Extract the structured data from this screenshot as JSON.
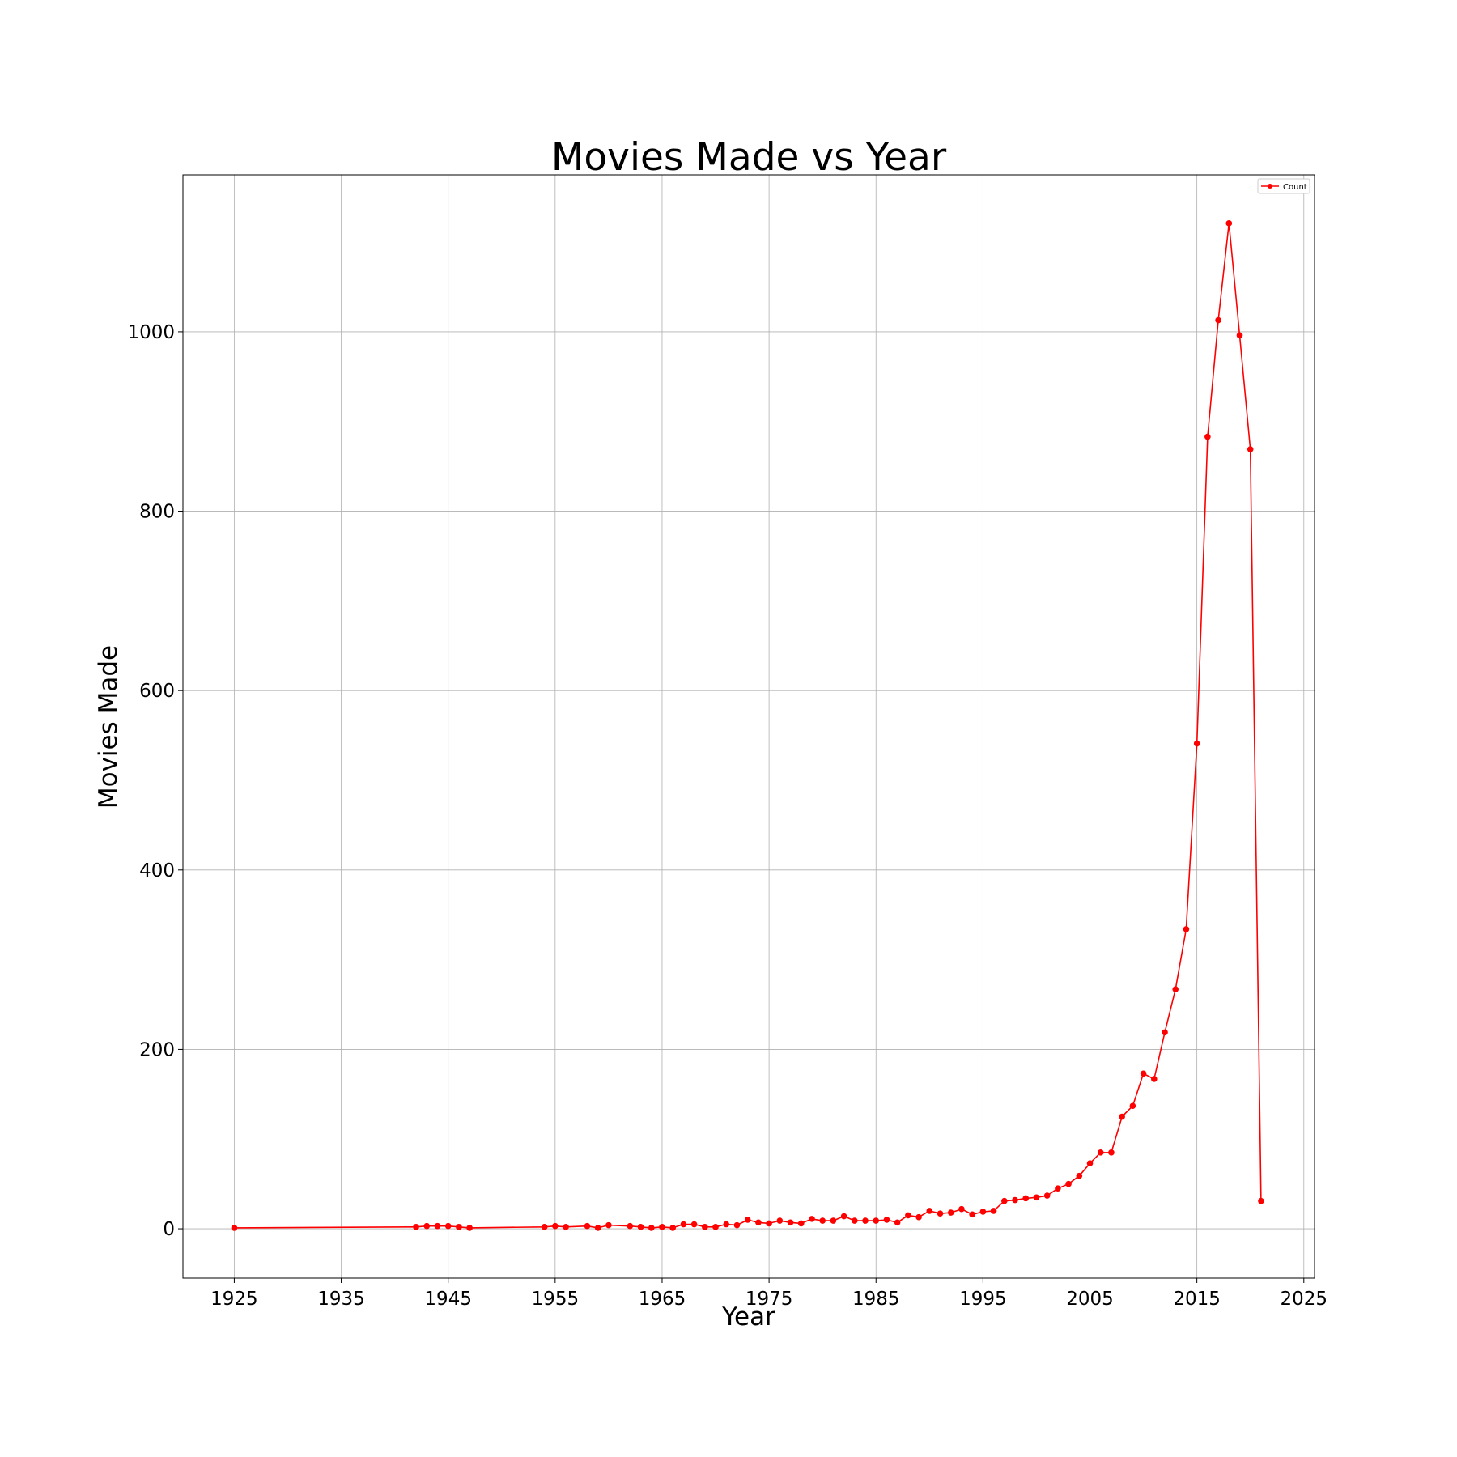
{
  "chart_data": {
    "type": "line",
    "title": "Movies Made vs Year",
    "xlabel": "Year",
    "ylabel": "Movies Made",
    "xlim": [
      1920.2,
      2026.0
    ],
    "ylim": [
      -55,
      1175
    ],
    "xticks": [
      1925,
      1935,
      1945,
      1955,
      1965,
      1975,
      1985,
      1995,
      2005,
      2015,
      2025
    ],
    "yticks": [
      0,
      200,
      400,
      600,
      800,
      1000
    ],
    "grid": true,
    "legend_position": "top-right",
    "series": [
      {
        "name": "Count",
        "color": "#ff0000",
        "marker": "circle",
        "x": [
          1925,
          1942,
          1943,
          1944,
          1945,
          1946,
          1947,
          1954,
          1955,
          1956,
          1958,
          1959,
          1960,
          1962,
          1963,
          1964,
          1965,
          1966,
          1967,
          1968,
          1969,
          1970,
          1971,
          1972,
          1973,
          1974,
          1975,
          1976,
          1977,
          1978,
          1979,
          1980,
          1981,
          1982,
          1983,
          1984,
          1985,
          1986,
          1987,
          1988,
          1989,
          1990,
          1991,
          1992,
          1993,
          1994,
          1995,
          1996,
          1997,
          1998,
          1999,
          2000,
          2001,
          2002,
          2003,
          2004,
          2005,
          2006,
          2007,
          2008,
          2009,
          2010,
          2011,
          2012,
          2013,
          2014,
          2015,
          2016,
          2017,
          2018,
          2019,
          2020,
          2021
        ],
        "y": [
          1,
          2,
          3,
          3,
          3,
          2,
          1,
          2,
          3,
          2,
          3,
          1,
          4,
          3,
          2,
          1,
          2,
          1,
          5,
          5,
          2,
          2,
          5,
          4,
          10,
          7,
          6,
          9,
          7,
          6,
          11,
          9,
          9,
          14,
          9,
          9,
          9,
          10,
          7,
          15,
          13,
          20,
          17,
          18,
          22,
          16,
          19,
          20,
          31,
          32,
          34,
          35,
          37,
          45,
          50,
          59,
          73,
          85,
          85,
          125,
          137,
          173,
          167,
          219,
          267,
          334,
          541,
          883,
          1013,
          1121,
          996,
          869,
          31
        ]
      }
    ]
  }
}
